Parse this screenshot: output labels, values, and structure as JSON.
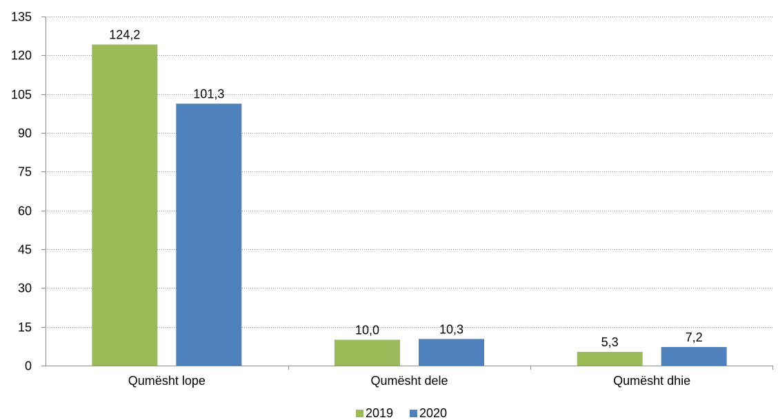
{
  "chart_data": {
    "type": "bar",
    "categories": [
      "Qumësht lope",
      "Qumësht dele",
      "Qumësht dhie"
    ],
    "series": [
      {
        "name": "2019",
        "color": "#9BBB59",
        "values": [
          124.2,
          10.0,
          5.3
        ],
        "labels": [
          "124,2",
          "10,0",
          "5,3"
        ]
      },
      {
        "name": "2020",
        "color": "#4F81BD",
        "values": [
          101.3,
          10.3,
          7.2
        ],
        "labels": [
          "101,3",
          "10,3",
          "7,2"
        ]
      }
    ],
    "ylim": [
      0,
      135
    ],
    "yticks": [
      0,
      15,
      30,
      45,
      60,
      75,
      90,
      105,
      120,
      135
    ],
    "grid": true,
    "legend_position": "bottom"
  }
}
